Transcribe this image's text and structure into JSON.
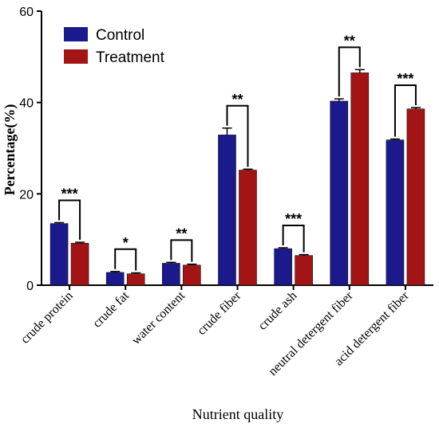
{
  "chart_data": {
    "type": "bar",
    "xlabel": "Nutrient quality",
    "ylabel": "Percentage(%)",
    "ylim": [
      0,
      60
    ],
    "yticks": [
      "0",
      "20",
      "40",
      "60"
    ],
    "categories": [
      "crude protein",
      "crude fat",
      "water content",
      "crude fiber",
      "crude ash",
      "neutral detergent fiber",
      "acid detergent fiber"
    ],
    "series": [
      {
        "name": "Control",
        "color": "#1a1a8c",
        "values": [
          13.5,
          2.8,
          4.8,
          32.9,
          8.0,
          40.3,
          31.8
        ],
        "errors": [
          0.2,
          0.2,
          0.2,
          1.5,
          0.2,
          0.5,
          0.2
        ]
      },
      {
        "name": "Treatment",
        "color": "#a31515",
        "values": [
          9.2,
          2.5,
          4.4,
          25.2,
          6.5,
          46.5,
          38.6
        ],
        "errors": [
          0.2,
          0.2,
          0.2,
          0.2,
          0.2,
          0.7,
          0.3
        ]
      }
    ],
    "significance": [
      "***",
      "*",
      "**",
      "**",
      "***",
      "**",
      "***"
    ],
    "legend_position": "top-left"
  }
}
